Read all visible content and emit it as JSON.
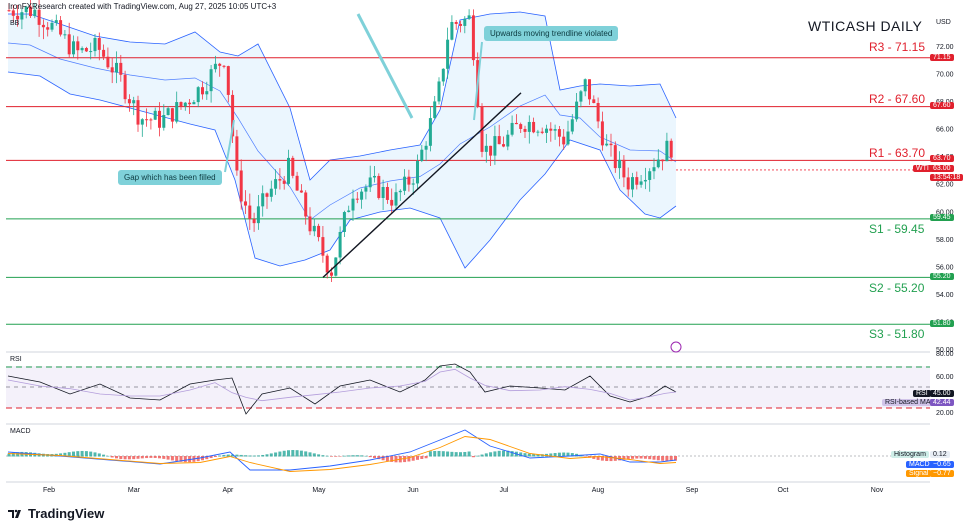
{
  "header": {
    "credit": "IronFXResearch created with TradingView.com, Aug 27, 2025 10:05 UTC+3",
    "indicator_bb": "BB",
    "title": "WTICASH DAILY",
    "currency": "USD"
  },
  "levels": [
    {
      "label": "R3 - 71.15",
      "price": 71.15,
      "tag": "71.15",
      "kind": "resistance"
    },
    {
      "label": "R2 - 67.60",
      "price": 67.6,
      "tag": "67.60",
      "kind": "resistance"
    },
    {
      "label": "R1 - 63.70",
      "price": 63.7,
      "tag": "63.70",
      "kind": "resistance"
    },
    {
      "label": "S1 - 59.45",
      "price": 59.45,
      "tag": "59.45",
      "kind": "support"
    },
    {
      "label": "S2 - 55.20",
      "price": 55.2,
      "tag": "55.20",
      "kind": "support"
    },
    {
      "label": "S3 - 51.80",
      "price": 51.8,
      "tag": "51.80",
      "kind": "support"
    }
  ],
  "annotations": {
    "gap": "Gap which has been filled",
    "trendline": "Upwards moving trendline violated"
  },
  "price_tags": {
    "symbol": "WTI",
    "last_price": "63.00",
    "countdown": "13:54:18"
  },
  "rsi": {
    "name": "RSI",
    "value_label": "RSI",
    "value": "45.00",
    "ma_label": "RSI-based MA",
    "ma_value": "42.44",
    "ticks": [
      "80.00",
      "60.00",
      "40.00",
      "20.00"
    ]
  },
  "macd": {
    "name": "MACD",
    "histogram_label": "Histogram",
    "histogram": "0.12",
    "macd_label": "MACD",
    "macd_value": "−0.65",
    "signal_label": "Signal",
    "signal_value": "−0.77"
  },
  "brand": "TradingView",
  "colors": {
    "up": "#22ab94",
    "down": "#f23645",
    "resistance": "#e0202d",
    "support": "#22a050",
    "bb": "#2962ff",
    "callout": "#7fd1d9",
    "rsi_line": "#131722",
    "macd_line": "#2962ff",
    "signal_line": "#ff9800"
  },
  "chart_data": {
    "type": "candlestick",
    "title": "WTICASH DAILY",
    "x_ticks": [
      "Feb",
      "Mar",
      "Apr",
      "May",
      "Jun",
      "Jul",
      "Aug",
      "Sep",
      "Oct",
      "Nov"
    ],
    "y_ticks": [
      72.0,
      70.0,
      68.0,
      66.0,
      64.0,
      62.0,
      60.0,
      58.0,
      56.0,
      54.0,
      52.0,
      50.0
    ],
    "ylim": [
      49,
      75
    ],
    "close_series": [
      {
        "date": "2025-01-27",
        "close": 74.6
      },
      {
        "date": "2025-02-03",
        "close": 73.2
      },
      {
        "date": "2025-02-10",
        "close": 71.5
      },
      {
        "date": "2025-02-17",
        "close": 71.9
      },
      {
        "date": "2025-02-24",
        "close": 69.8
      },
      {
        "date": "2025-03-03",
        "close": 66.8
      },
      {
        "date": "2025-03-10",
        "close": 66.6
      },
      {
        "date": "2025-03-17",
        "close": 67.7
      },
      {
        "date": "2025-03-24",
        "close": 69.2
      },
      {
        "date": "2025-03-31",
        "close": 71.3
      },
      {
        "date": "2025-04-04",
        "close": 62.2
      },
      {
        "date": "2025-04-09",
        "close": 59.0
      },
      {
        "date": "2025-04-14",
        "close": 61.2
      },
      {
        "date": "2025-04-21",
        "close": 63.1
      },
      {
        "date": "2025-04-28",
        "close": 59.0
      },
      {
        "date": "2025-05-05",
        "close": 55.6
      },
      {
        "date": "2025-05-12",
        "close": 61.5
      },
      {
        "date": "2025-05-19",
        "close": 61.9
      },
      {
        "date": "2025-05-26",
        "close": 60.8
      },
      {
        "date": "2025-06-02",
        "close": 62.9
      },
      {
        "date": "2025-06-09",
        "close": 68.0
      },
      {
        "date": "2025-06-13",
        "close": 73.5
      },
      {
        "date": "2025-06-20",
        "close": 74.0
      },
      {
        "date": "2025-06-24",
        "close": 64.4
      },
      {
        "date": "2025-06-30",
        "close": 64.8
      },
      {
        "date": "2025-07-07",
        "close": 66.5
      },
      {
        "date": "2025-07-14",
        "close": 66.3
      },
      {
        "date": "2025-07-21",
        "close": 65.2
      },
      {
        "date": "2025-07-28",
        "close": 69.3
      },
      {
        "date": "2025-08-04",
        "close": 64.5
      },
      {
        "date": "2025-08-11",
        "close": 62.1
      },
      {
        "date": "2025-08-18",
        "close": 63.3
      },
      {
        "date": "2025-08-25",
        "close": 64.8
      },
      {
        "date": "2025-08-27",
        "close": 63.0
      }
    ]
  }
}
